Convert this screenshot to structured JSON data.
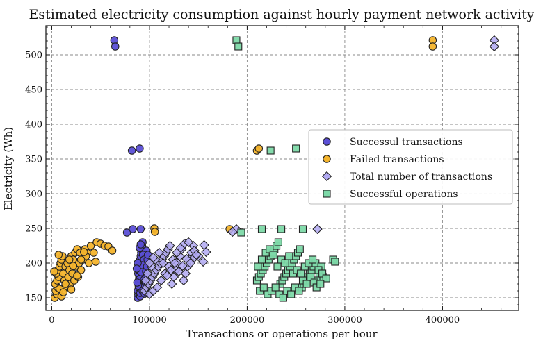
{
  "chart_data": {
    "type": "scatter",
    "title": "Estimated electricity consumption against hourly payment network activity",
    "xlabel": "Transactions or operations per hour",
    "ylabel": "Electricity (Wh)",
    "xlim": [
      -6000,
      478000
    ],
    "ylim": [
      132,
      542
    ],
    "xticks": [
      0,
      100000,
      200000,
      300000,
      400000
    ],
    "xtick_labels": [
      "0",
      "100000",
      "200000",
      "300000",
      "400000"
    ],
    "yticks": [
      150,
      200,
      250,
      300,
      350,
      400,
      450,
      500
    ],
    "ytick_labels": [
      "150",
      "200",
      "250",
      "300",
      "350",
      "400",
      "450",
      "500"
    ],
    "grid": true,
    "legend_position": "center-right",
    "series": [
      {
        "name": "Successul transactions",
        "marker": "circle",
        "color": "#5b4fd6",
        "points": [
          [
            64000,
            521
          ],
          [
            65000,
            512
          ],
          [
            82000,
            362
          ],
          [
            90000,
            365
          ],
          [
            77000,
            244
          ],
          [
            83000,
            249
          ],
          [
            91000,
            249
          ],
          [
            88000,
            150
          ],
          [
            88500,
            155
          ],
          [
            88000,
            160
          ],
          [
            89000,
            165
          ],
          [
            88500,
            170
          ],
          [
            89000,
            175
          ],
          [
            89500,
            180
          ],
          [
            88500,
            185
          ],
          [
            89000,
            190
          ],
          [
            89500,
            195
          ],
          [
            90000,
            200
          ],
          [
            90500,
            205
          ],
          [
            91000,
            210
          ],
          [
            91500,
            215
          ],
          [
            92000,
            220
          ],
          [
            92500,
            225
          ],
          [
            93000,
            230
          ],
          [
            90500,
            152
          ],
          [
            91000,
            158
          ],
          [
            91500,
            163
          ],
          [
            92000,
            168
          ],
          [
            92500,
            173
          ],
          [
            93000,
            178
          ],
          [
            93500,
            183
          ],
          [
            94000,
            188
          ],
          [
            94500,
            193
          ],
          [
            95000,
            198
          ],
          [
            95500,
            203
          ],
          [
            96000,
            208
          ],
          [
            96500,
            213
          ],
          [
            97000,
            218
          ],
          [
            90000,
            222
          ],
          [
            91000,
            227
          ],
          [
            93500,
            212
          ],
          [
            94500,
            205
          ],
          [
            92500,
            197
          ],
          [
            91500,
            187
          ],
          [
            90000,
            177
          ],
          [
            89000,
            167
          ],
          [
            90500,
            157
          ],
          [
            94500,
            176
          ],
          [
            95500,
            167
          ],
          [
            96500,
            188
          ],
          [
            97500,
            195
          ],
          [
            98000,
            205
          ],
          [
            93000,
            160
          ],
          [
            95000,
            156
          ],
          [
            96000,
            173
          ],
          [
            87500,
            172
          ],
          [
            88000,
            200
          ],
          [
            87000,
            192
          ],
          [
            98500,
            212
          ],
          [
            97000,
            180
          ]
        ]
      },
      {
        "name": "Failed transactions",
        "marker": "circle",
        "color": "#f4b42c",
        "points": [
          [
            390000,
            521
          ],
          [
            390000,
            512
          ],
          [
            210000,
            362
          ],
          [
            212000,
            365
          ],
          [
            105000,
            250
          ],
          [
            105500,
            245
          ],
          [
            182000,
            249
          ],
          [
            3000,
            150
          ],
          [
            5000,
            155
          ],
          [
            4000,
            160
          ],
          [
            6000,
            165
          ],
          [
            3500,
            170
          ],
          [
            5500,
            175
          ],
          [
            7000,
            180
          ],
          [
            4500,
            185
          ],
          [
            6500,
            190
          ],
          [
            8000,
            195
          ],
          [
            9000,
            200
          ],
          [
            10000,
            205
          ],
          [
            11000,
            210
          ],
          [
            12000,
            185
          ],
          [
            13000,
            175
          ],
          [
            14000,
            195
          ],
          [
            15000,
            165
          ],
          [
            16000,
            200
          ],
          [
            17000,
            180
          ],
          [
            18000,
            190
          ],
          [
            19000,
            170
          ],
          [
            20000,
            210
          ],
          [
            21000,
            185
          ],
          [
            22000,
            205
          ],
          [
            23000,
            175
          ],
          [
            24000,
            215
          ],
          [
            25000,
            195
          ],
          [
            26000,
            220
          ],
          [
            27000,
            180
          ],
          [
            28000,
            200
          ],
          [
            29000,
            215
          ],
          [
            30000,
            190
          ],
          [
            32000,
            205
          ],
          [
            34000,
            220
          ],
          [
            36000,
            215
          ],
          [
            38000,
            200
          ],
          [
            40000,
            225
          ],
          [
            43000,
            215
          ],
          [
            46000,
            230
          ],
          [
            50000,
            228
          ],
          [
            54000,
            225
          ],
          [
            58000,
            224
          ],
          [
            62000,
            218
          ],
          [
            45000,
            202
          ],
          [
            35000,
            210
          ],
          [
            8000,
            163
          ],
          [
            10000,
            152
          ],
          [
            12000,
            158
          ],
          [
            14000,
            170
          ],
          [
            7000,
            212
          ],
          [
            2500,
            188
          ],
          [
            18000,
            205
          ],
          [
            22000,
            196
          ],
          [
            26000,
            182
          ],
          [
            30000,
            205
          ],
          [
            33000,
            216
          ],
          [
            20000,
            162
          ]
        ]
      },
      {
        "name": "Total number of transactions",
        "marker": "diamond",
        "color": "#b1a9f2",
        "points": [
          [
            453000,
            521
          ],
          [
            453000,
            512
          ],
          [
            189000,
            249
          ],
          [
            185000,
            245
          ],
          [
            272000,
            249
          ],
          [
            95000,
            160
          ],
          [
            97000,
            165
          ],
          [
            99000,
            170
          ],
          [
            101000,
            175
          ],
          [
            103000,
            180
          ],
          [
            105000,
            185
          ],
          [
            107000,
            190
          ],
          [
            109000,
            195
          ],
          [
            111000,
            200
          ],
          [
            113000,
            205
          ],
          [
            115000,
            210
          ],
          [
            117000,
            215
          ],
          [
            119000,
            220
          ],
          [
            121000,
            225
          ],
          [
            123000,
            170
          ],
          [
            125000,
            180
          ],
          [
            127000,
            190
          ],
          [
            129000,
            200
          ],
          [
            131000,
            210
          ],
          [
            133000,
            220
          ],
          [
            135000,
            175
          ],
          [
            137000,
            185
          ],
          [
            139000,
            195
          ],
          [
            141000,
            205
          ],
          [
            143000,
            215
          ],
          [
            145000,
            225
          ],
          [
            100000,
            155
          ],
          [
            104000,
            160
          ],
          [
            108000,
            165
          ],
          [
            112000,
            175
          ],
          [
            116000,
            185
          ],
          [
            120000,
            195
          ],
          [
            124000,
            205
          ],
          [
            128000,
            215
          ],
          [
            132000,
            222
          ],
          [
            136000,
            228
          ],
          [
            140000,
            230
          ],
          [
            146000,
            218
          ],
          [
            150000,
            210
          ],
          [
            156000,
            226
          ],
          [
            158000,
            216
          ],
          [
            155000,
            202
          ],
          [
            98000,
            185
          ],
          [
            102000,
            195
          ],
          [
            106000,
            205
          ],
          [
            110000,
            215
          ],
          [
            114000,
            200
          ],
          [
            118000,
            182
          ],
          [
            122000,
            190
          ],
          [
            126000,
            200
          ],
          [
            130000,
            188
          ],
          [
            134000,
            196
          ],
          [
            138000,
            206
          ],
          [
            142000,
            200
          ],
          [
            146000,
            208
          ],
          [
            148000,
            212
          ],
          [
            96000,
            175
          ],
          [
            100000,
            200
          ],
          [
            104000,
            208
          ]
        ]
      },
      {
        "name": "Successful operations",
        "marker": "square",
        "color": "#7dd9a8",
        "points": [
          [
            189000,
            521
          ],
          [
            191000,
            512
          ],
          [
            194000,
            244
          ],
          [
            215000,
            249
          ],
          [
            224000,
            362
          ],
          [
            250000,
            365
          ],
          [
            235000,
            249
          ],
          [
            257000,
            249
          ],
          [
            210000,
            175
          ],
          [
            212000,
            180
          ],
          [
            214000,
            185
          ],
          [
            216000,
            190
          ],
          [
            218000,
            195
          ],
          [
            220000,
            200
          ],
          [
            222000,
            205
          ],
          [
            224000,
            210
          ],
          [
            226000,
            215
          ],
          [
            228000,
            220
          ],
          [
            230000,
            225
          ],
          [
            232000,
            230
          ],
          [
            234000,
            170
          ],
          [
            236000,
            175
          ],
          [
            238000,
            180
          ],
          [
            240000,
            185
          ],
          [
            242000,
            190
          ],
          [
            244000,
            195
          ],
          [
            246000,
            200
          ],
          [
            248000,
            205
          ],
          [
            250000,
            210
          ],
          [
            252000,
            215
          ],
          [
            254000,
            220
          ],
          [
            256000,
            165
          ],
          [
            258000,
            170
          ],
          [
            260000,
            175
          ],
          [
            262000,
            180
          ],
          [
            264000,
            185
          ],
          [
            266000,
            190
          ],
          [
            268000,
            195
          ],
          [
            270000,
            200
          ],
          [
            272000,
            175
          ],
          [
            274000,
            185
          ],
          [
            276000,
            195
          ],
          [
            278000,
            180
          ],
          [
            288000,
            205
          ],
          [
            290000,
            202
          ],
          [
            213000,
            160
          ],
          [
            217000,
            165
          ],
          [
            221000,
            155
          ],
          [
            225000,
            160
          ],
          [
            229000,
            165
          ],
          [
            233000,
            155
          ],
          [
            237000,
            150
          ],
          [
            241000,
            160
          ],
          [
            245000,
            155
          ],
          [
            249000,
            165
          ],
          [
            253000,
            160
          ],
          [
            257000,
            175
          ],
          [
            261000,
            170
          ],
          [
            265000,
            180
          ],
          [
            269000,
            172
          ],
          [
            273000,
            190
          ],
          [
            277000,
            185
          ],
          [
            281000,
            178
          ],
          [
            211000,
            195
          ],
          [
            215000,
            205
          ],
          [
            219000,
            215
          ],
          [
            223000,
            220
          ],
          [
            227000,
            212
          ],
          [
            231000,
            195
          ],
          [
            235000,
            205
          ],
          [
            239000,
            200
          ],
          [
            243000,
            210
          ],
          [
            247000,
            185
          ],
          [
            251000,
            190
          ],
          [
            255000,
            185
          ],
          [
            259000,
            195
          ],
          [
            263000,
            200
          ],
          [
            267000,
            205
          ],
          [
            271000,
            165
          ],
          [
            275000,
            170
          ]
        ]
      }
    ]
  }
}
